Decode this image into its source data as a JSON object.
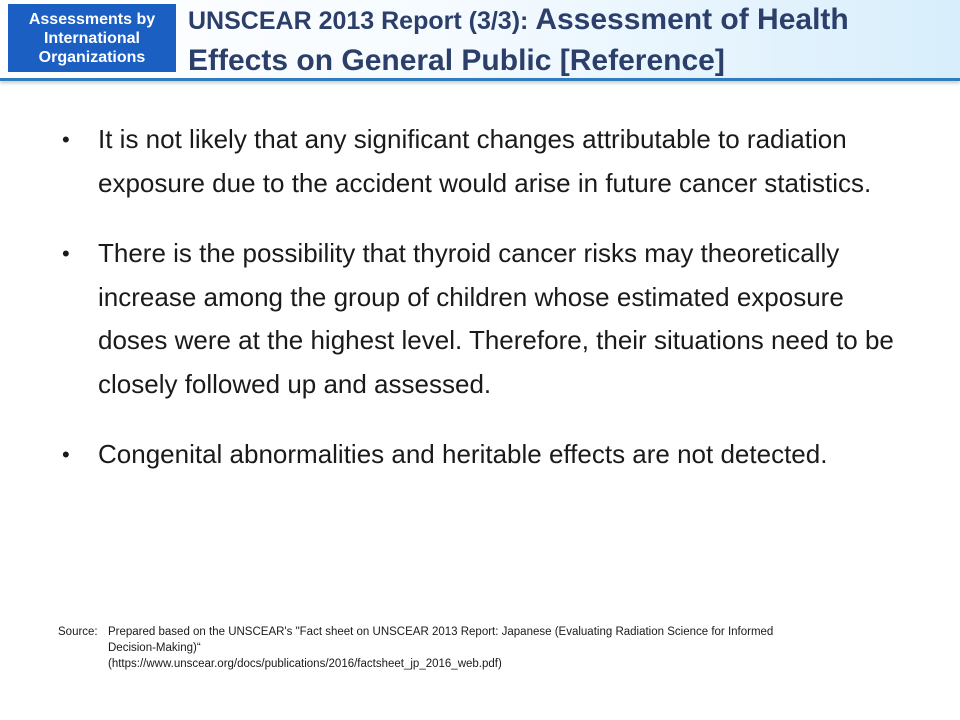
{
  "header": {
    "tag_text": "Assessments by\nInternational\nOrganizations",
    "title_part_a": "UNSCEAR 2013 Report (3/3): ",
    "title_part_b": "Assessment of Health",
    "title_line2": "Effects on General Public [Reference]"
  },
  "bullets": [
    {
      "marker": "•",
      "text": "It is not likely that any significant changes attributable to radiation exposure due to the accident would arise in future cancer statistics."
    },
    {
      "marker": "•",
      "text": "There is the possibility that thyroid cancer risks may theoretically increase among the group of children whose estimated exposure doses were at the highest level. Therefore, their situations need to be closely followed up and assessed."
    },
    {
      "marker": "•",
      "text": "Congenital abnormalities and heritable effects are not detected."
    }
  ],
  "source": {
    "label": "Source:",
    "line1": "Prepared based on the UNSCEAR's \"Fact sheet on UNSCEAR 2013 Report: Japanese (Evaluating Radiation Science for Informed",
    "line2": "Decision-Making)“",
    "line3": "(https://www.unscear.org/docs/publications/2016/factsheet_jp_2016_web.pdf)"
  },
  "colors": {
    "tag_bg": "#1b5fc2",
    "title_text": "#2b3f6a",
    "rule": "#2f7cbf"
  }
}
